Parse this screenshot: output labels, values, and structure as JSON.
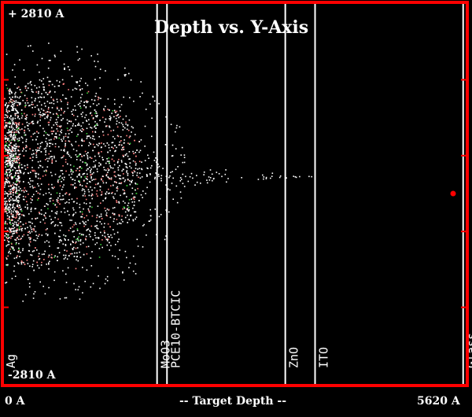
{
  "chart_data": {
    "type": "scatter",
    "title": "Depth vs. Y-Axis",
    "xlabel": "-- Target Depth --",
    "ylabel": "",
    "x_tick_labels": [
      "0 A",
      "5620 A"
    ],
    "y_tick_labels": [
      "+ 2810 A",
      "-2810 A"
    ],
    "xlim": [
      0,
      5620
    ],
    "ylim": [
      -2810,
      2810
    ],
    "grid": false,
    "colors": {
      "background": "#000000",
      "frame": "#ff0000",
      "text": "#ffffff",
      "layer_boundary": "#ffffff",
      "points_main": "#ffffff",
      "points_accent_1": "#ff7f7f",
      "points_accent_2": "#33cc33"
    },
    "layers": [
      {
        "name": "Ag",
        "boundary_depth": 0
      },
      {
        "name": "MoO3",
        "boundary_depth": 1870
      },
      {
        "name": "PCE10-BTCIC",
        "boundary_depth": 1990
      },
      {
        "name": "ZnO",
        "boundary_depth": 3420
      },
      {
        "name": "ITO",
        "boundary_depth": 3780
      },
      {
        "name": "Glass",
        "boundary_depth": 5570
      }
    ],
    "series": [
      {
        "cluster_center": [
          450,
          300
        ],
        "cluster_radius": [
          1250,
          1350
        ],
        "tail_to_depth": 3750
      }
    ]
  }
}
